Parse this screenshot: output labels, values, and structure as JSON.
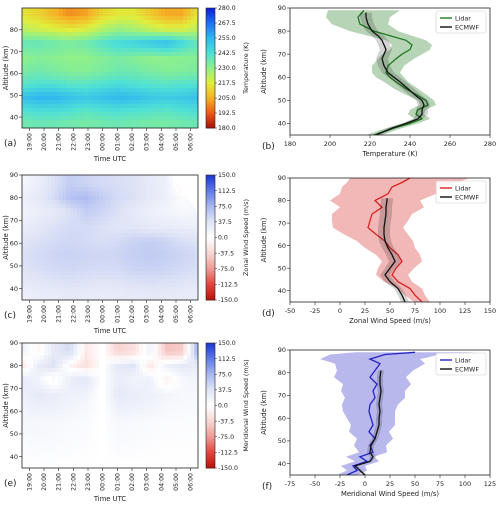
{
  "chart_data": [
    {
      "id": "a",
      "type": "heatmap",
      "panel_label": "(a)",
      "xlabel": "Time UTC",
      "ylabel": "Altitude (km)",
      "x_ticks": [
        "19:00",
        "20:00",
        "21:00",
        "22:00",
        "23:00",
        "00:00",
        "01:00",
        "02:00",
        "03:00",
        "04:00",
        "05:00",
        "06:00"
      ],
      "ylim": [
        35,
        90
      ],
      "y_ticks": [
        40,
        50,
        60,
        70,
        80
      ],
      "colorbar": {
        "label": "Temperature (K)",
        "range": [
          180,
          280
        ],
        "ticks": [
          "280.0",
          "267.5",
          "255.0",
          "242.5",
          "230.0",
          "217.5",
          "205.0",
          "192.5",
          "180.0"
        ],
        "colors": [
          "#0b1fd6",
          "#1f6ff2",
          "#2fb7f0",
          "#4fe0d6",
          "#8ff08a",
          "#e0ee3c",
          "#f6b126",
          "#ec5a16",
          "#a5100c"
        ]
      },
      "field": [
        {
          "alt": 87,
          "values": [
            215,
            212,
            206,
            200,
            203,
            212,
            216,
            216,
            210,
            204,
            204,
            216
          ]
        },
        {
          "alt": 80,
          "values": [
            224,
            221,
            219,
            217,
            219,
            225,
            229,
            227,
            223,
            220,
            220,
            224
          ]
        },
        {
          "alt": 74,
          "values": [
            238,
            238,
            236,
            234,
            236,
            241,
            245,
            247,
            250,
            253,
            246,
            238
          ]
        },
        {
          "alt": 67,
          "values": [
            230,
            232,
            231,
            230,
            230,
            232,
            234,
            232,
            230,
            230,
            231,
            232
          ]
        },
        {
          "alt": 61,
          "values": [
            234,
            236,
            234,
            232,
            232,
            234,
            236,
            236,
            234,
            232,
            233,
            234
          ]
        },
        {
          "alt": 55,
          "values": [
            240,
            242,
            242,
            240,
            240,
            242,
            244,
            242,
            241,
            240,
            241,
            242
          ]
        },
        {
          "alt": 49,
          "values": [
            252,
            255,
            255,
            252,
            250,
            252,
            254,
            253,
            250,
            249,
            250,
            252
          ]
        },
        {
          "alt": 43,
          "values": [
            242,
            244,
            244,
            242,
            240,
            242,
            243,
            242,
            241,
            240,
            242,
            244
          ]
        },
        {
          "alt": 38,
          "values": [
            236,
            237,
            237,
            236,
            235,
            236,
            237,
            236,
            235,
            235,
            236,
            237
          ]
        }
      ]
    },
    {
      "id": "b",
      "type": "line",
      "panel_label": "(b)",
      "xlabel": "Temperature (K)",
      "ylabel": "Altitude (km)",
      "xlim": [
        180,
        280
      ],
      "x_ticks": [
        180,
        200,
        220,
        240,
        260,
        280
      ],
      "ylim": [
        35,
        90
      ],
      "y_ticks": [
        40,
        50,
        60,
        70,
        80,
        90
      ],
      "legend": "top-right",
      "series": [
        {
          "name": "Lidar",
          "color": "#1f7a1f",
          "altitude": [
            35,
            38,
            40,
            42,
            44,
            46,
            48,
            50,
            52,
            55,
            58,
            60,
            62,
            65,
            68,
            70,
            72,
            74,
            76,
            78,
            80,
            83,
            86,
            89
          ],
          "mean": [
            222,
            232,
            240,
            246,
            243,
            244,
            249,
            248,
            244,
            238,
            233,
            230,
            228,
            229,
            233,
            236,
            240,
            241,
            238,
            230,
            222,
            215,
            214,
            217
          ],
          "spread": [
            4,
            4,
            4,
            4,
            4,
            4,
            4,
            4,
            5,
            6,
            6,
            7,
            7,
            8,
            9,
            10,
            10,
            10,
            10,
            11,
            12,
            14,
            16,
            18
          ]
        },
        {
          "name": "ECMWF",
          "color": "#111111",
          "altitude": [
            35,
            38,
            40,
            42,
            44,
            46,
            48,
            50,
            52,
            55,
            58,
            60,
            62,
            65,
            68,
            70,
            72,
            74,
            76,
            78,
            80,
            83,
            86,
            88
          ],
          "mean": [
            223,
            231,
            238,
            244,
            246,
            246,
            247,
            246,
            243,
            239,
            235,
            232,
            229,
            227,
            226,
            227,
            228,
            227,
            226,
            224,
            221,
            219,
            218,
            218
          ],
          "spread": [
            2,
            2,
            2,
            2,
            3,
            3,
            3,
            3,
            3,
            3,
            3,
            3,
            3,
            3,
            3,
            3,
            3,
            3,
            3,
            3,
            3,
            3,
            3,
            3
          ]
        }
      ]
    },
    {
      "id": "c",
      "type": "heatmap",
      "panel_label": "(c)",
      "xlabel": "Time UTC",
      "ylabel": "Altitude (km)",
      "x_ticks": [
        "19:00",
        "20:00",
        "21:00",
        "22:00",
        "23:00",
        "00:00",
        "01:00",
        "02:00",
        "03:00",
        "04:00",
        "05:00",
        "06:00"
      ],
      "ylim": [
        35,
        90
      ],
      "y_ticks": [
        40,
        50,
        60,
        70,
        80,
        90
      ],
      "colorbar": {
        "label": "Zonal Wind Speed (m/s)",
        "range": [
          -150,
          150
        ],
        "ticks": [
          "150.0",
          "112.5",
          "75.0",
          "37.5",
          "0.0",
          "-37.5",
          "-75.0",
          "-112.5",
          "-150.0"
        ],
        "colors": [
          "#1d35cf",
          "#5f7ae6",
          "#a7b6f0",
          "#dfe4f6",
          "#ffffff",
          "#f8d7d5",
          "#f09a94",
          "#e0473d",
          "#b9120d"
        ]
      },
      "field": [
        {
          "alt": 86,
          "values": [
            12,
            22,
            40,
            55,
            50,
            45,
            42,
            38,
            30,
            20,
            -15,
            -35
          ]
        },
        {
          "alt": 80,
          "values": [
            20,
            30,
            45,
            65,
            70,
            55,
            45,
            40,
            30,
            22,
            5,
            10
          ]
        },
        {
          "alt": 74,
          "values": [
            15,
            22,
            30,
            40,
            55,
            50,
            40,
            30,
            20,
            15,
            10,
            12
          ]
        },
        {
          "alt": 67,
          "values": [
            25,
            32,
            40,
            45,
            45,
            40,
            35,
            35,
            30,
            28,
            25,
            22
          ]
        },
        {
          "alt": 61,
          "values": [
            35,
            40,
            45,
            48,
            45,
            42,
            45,
            52,
            55,
            50,
            42,
            38
          ]
        },
        {
          "alt": 55,
          "values": [
            40,
            45,
            50,
            52,
            50,
            48,
            50,
            55,
            58,
            55,
            50,
            45
          ]
        },
        {
          "alt": 49,
          "values": [
            38,
            42,
            46,
            48,
            46,
            45,
            46,
            50,
            52,
            50,
            46,
            42
          ]
        },
        {
          "alt": 43,
          "values": [
            30,
            34,
            38,
            40,
            38,
            36,
            38,
            40,
            42,
            40,
            38,
            34
          ]
        },
        {
          "alt": 38,
          "values": [
            22,
            26,
            28,
            30,
            28,
            26,
            28,
            30,
            32,
            30,
            28,
            26
          ]
        }
      ]
    },
    {
      "id": "d",
      "type": "line",
      "panel_label": "(d)",
      "xlabel": "Zonal Wind Speed (m/s)",
      "ylabel": "Altitude (km)",
      "xlim": [
        -50,
        150
      ],
      "x_ticks": [
        -50,
        -25,
        0,
        25,
        50,
        75,
        100,
        125,
        150
      ],
      "ylim": [
        35,
        90
      ],
      "y_ticks": [
        40,
        50,
        60,
        70,
        80,
        90
      ],
      "legend": "top-right",
      "series": [
        {
          "name": "Lidar",
          "color": "#d62222",
          "altitude": [
            35,
            38,
            41,
            44,
            47,
            50,
            53,
            56,
            59,
            62,
            65,
            68,
            71,
            74,
            77,
            80,
            83,
            86,
            88,
            90
          ],
          "mean": [
            82,
            75,
            70,
            58,
            52,
            56,
            62,
            58,
            50,
            45,
            36,
            28,
            30,
            32,
            42,
            35,
            48,
            52,
            62,
            70
          ],
          "spread": [
            8,
            10,
            12,
            14,
            16,
            18,
            20,
            22,
            25,
            28,
            32,
            35,
            38,
            40,
            42,
            45,
            48,
            50,
            55,
            60
          ]
        },
        {
          "name": "ECMWF",
          "color": "#111111",
          "altitude": [
            35,
            38,
            41,
            44,
            47,
            50,
            53,
            56,
            59,
            62,
            65,
            68,
            71,
            74,
            77,
            80,
            81
          ],
          "mean": [
            65,
            62,
            58,
            50,
            45,
            50,
            55,
            52,
            48,
            45,
            44,
            44,
            45,
            46,
            46,
            47,
            47
          ],
          "spread": [
            4,
            4,
            4,
            5,
            5,
            5,
            6,
            6,
            6,
            6,
            6,
            6,
            6,
            6,
            6,
            6,
            6
          ]
        }
      ]
    },
    {
      "id": "e",
      "type": "heatmap",
      "panel_label": "(e)",
      "xlabel": "Time UTC",
      "ylabel": "Altitude (km)",
      "x_ticks": [
        "19:00",
        "20:00",
        "21:00",
        "22:00",
        "23:00",
        "00:00",
        "01:00",
        "02:00",
        "03:00",
        "04:00",
        "05:00",
        "06:00"
      ],
      "ylim": [
        35,
        90
      ],
      "y_ticks": [
        40,
        50,
        60,
        70,
        80,
        90
      ],
      "colorbar": {
        "label": "Meridional Wind Speed (m/s)",
        "range": [
          -150,
          150
        ],
        "ticks": [
          "150.0",
          "112.5",
          "75.0",
          "37.5",
          "0.0",
          "-37.5",
          "-75.0",
          "-112.5",
          "-150.0"
        ],
        "colors": [
          "#1d35cf",
          "#5f7ae6",
          "#a7b6f0",
          "#dfe4f6",
          "#ffffff",
          "#f8d7d5",
          "#f09a94",
          "#e0473d",
          "#b9120d"
        ]
      },
      "field": [
        {
          "alt": 86,
          "values": [
            20,
            -10,
            30,
            45,
            -20,
            0,
            -40,
            -30,
            20,
            -50,
            -45,
            80
          ]
        },
        {
          "alt": 80,
          "values": [
            -25,
            25,
            40,
            -10,
            -30,
            0,
            30,
            35,
            -25,
            20,
            30,
            25
          ]
        },
        {
          "alt": 74,
          "values": [
            30,
            15,
            -10,
            25,
            35,
            0,
            25,
            15,
            20,
            -15,
            10,
            15
          ]
        },
        {
          "alt": 67,
          "values": [
            20,
            30,
            25,
            20,
            15,
            0,
            30,
            25,
            20,
            15,
            10,
            10
          ]
        },
        {
          "alt": 61,
          "values": [
            15,
            20,
            18,
            15,
            10,
            0,
            20,
            18,
            15,
            10,
            8,
            8
          ]
        },
        {
          "alt": 55,
          "values": [
            10,
            12,
            10,
            8,
            6,
            0,
            10,
            8,
            6,
            5,
            4,
            4
          ]
        },
        {
          "alt": 49,
          "values": [
            8,
            10,
            8,
            6,
            5,
            0,
            8,
            6,
            5,
            4,
            3,
            3
          ]
        },
        {
          "alt": 43,
          "values": [
            4,
            6,
            5,
            4,
            3,
            0,
            5,
            4,
            3,
            2,
            2,
            2
          ]
        },
        {
          "alt": 38,
          "values": [
            2,
            3,
            2,
            2,
            1,
            0,
            2,
            2,
            1,
            1,
            1,
            1
          ]
        }
      ]
    },
    {
      "id": "f",
      "type": "line",
      "panel_label": "(f)",
      "xlabel": "Meridional Wind Speed (m/s)",
      "ylabel": "Altitude (km)",
      "xlim": [
        -75,
        125
      ],
      "x_ticks": [
        -75,
        -50,
        -25,
        0,
        25,
        50,
        75,
        100,
        125
      ],
      "ylim": [
        35,
        90
      ],
      "y_ticks": [
        40,
        50,
        60,
        70,
        80,
        90
      ],
      "legend": "top-right",
      "series": [
        {
          "name": "Lidar",
          "color": "#2222c8",
          "altitude": [
            35,
            37,
            39,
            41,
            43,
            45,
            48,
            51,
            54,
            57,
            60,
            63,
            66,
            69,
            72,
            75,
            78,
            81,
            84,
            86,
            88,
            89
          ],
          "mean": [
            -18,
            -8,
            -12,
            2,
            -5,
            8,
            5,
            10,
            4,
            8,
            6,
            4,
            5,
            10,
            8,
            12,
            5,
            10,
            15,
            5,
            20,
            50
          ],
          "spread": [
            10,
            10,
            12,
            12,
            14,
            14,
            16,
            18,
            20,
            22,
            24,
            26,
            28,
            30,
            32,
            34,
            36,
            38,
            45,
            50,
            55,
            60
          ]
        },
        {
          "name": "ECMWF",
          "color": "#111111",
          "altitude": [
            35,
            37,
            39,
            41,
            43,
            45,
            48,
            51,
            54,
            57,
            60,
            63,
            66,
            69,
            72,
            75,
            78,
            81
          ],
          "mean": [
            0,
            -5,
            -10,
            5,
            8,
            5,
            6,
            10,
            12,
            14,
            14,
            15,
            14,
            15,
            16,
            15,
            15,
            16
          ],
          "spread": [
            2,
            2,
            2,
            2,
            3,
            3,
            3,
            3,
            3,
            3,
            3,
            3,
            3,
            3,
            3,
            3,
            3,
            3
          ]
        }
      ]
    }
  ]
}
